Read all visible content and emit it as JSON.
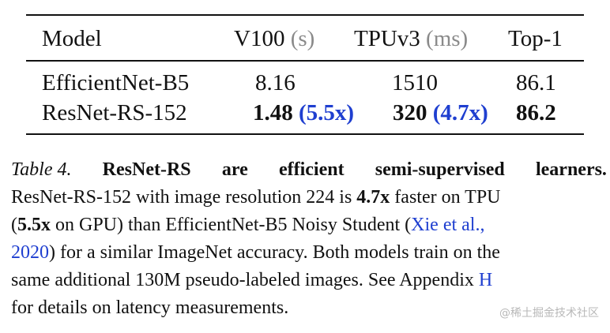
{
  "table": {
    "headers": {
      "model": "Model",
      "v100": "V100",
      "v100_unit": "(s)",
      "tpu": "TPUv3",
      "tpu_unit": "(ms)",
      "top1": "Top-1"
    },
    "rows": [
      {
        "model": "EfficientNet-B5",
        "v100": "8.16",
        "v100_speedup": "",
        "tpu": "1510",
        "tpu_speedup": "",
        "top1": "86.1"
      },
      {
        "model": "ResNet-RS-152",
        "v100": "1.48",
        "v100_speedup": "(5.5x)",
        "tpu": "320",
        "tpu_speedup": "(4.7x)",
        "top1": "86.2"
      }
    ]
  },
  "caption": {
    "label": "Table 4.",
    "title_words": [
      "ResNet-RS",
      "are",
      "efficient",
      "semi-supervised",
      "learners."
    ],
    "line2_start": "ResNet-RS-152 with image resolution 224 is ",
    "line2_bold": "4.7x",
    "line2_end": " faster on TPU",
    "line3_bold": "5.5x",
    "line3_mid": " on GPU) than EfficientNet-B5 Noisy Student (",
    "line3_link": "Xie et al.,",
    "line4_link": "2020",
    "line4_end": ") for a similar ImageNet accuracy. Both models train on the",
    "line5_start": "same additional 130M pseudo-labeled images. See Appendix ",
    "line5_link": "H",
    "line6": "for details on latency measurements."
  },
  "watermark": "@稀土掘金技术社区"
}
